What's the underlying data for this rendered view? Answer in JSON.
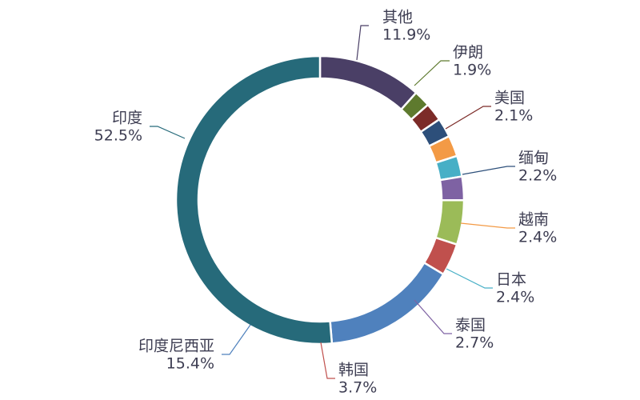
{
  "chart_data": {
    "type": "pie",
    "variant": "donut",
    "title": "",
    "legend": "none",
    "unit": "%",
    "start": "top",
    "direction": "clockwise",
    "slices": [
      {
        "label": "其他",
        "value": 11.9,
        "text": "11.9%",
        "color": "#4a3f66"
      },
      {
        "label": "伊朗",
        "value": 1.9,
        "text": "1.9%",
        "color": "#5e7a2e"
      },
      {
        "label": "美国",
        "value": 2.1,
        "text": "2.1%",
        "color": "#7c2b28"
      },
      {
        "label": "缅甸",
        "value": 2.2,
        "text": "2.2%",
        "color": "#2d4f7a"
      },
      {
        "label": "越南",
        "value": 2.4,
        "text": "2.4%",
        "color": "#f39a45"
      },
      {
        "label": "日本",
        "value": 2.4,
        "text": "2.4%",
        "color": "#47afc6"
      },
      {
        "label": "泰国",
        "value": 2.7,
        "text": "2.7%",
        "color": "#7e62a3"
      },
      {
        "label": "",
        "value": 5.1,
        "text": "",
        "color": "#9bbb58"
      },
      {
        "label": "韩国",
        "value": 3.7,
        "text": "3.7%",
        "color": "#c0504d"
      },
      {
        "label": "印度尼西亚",
        "value": 15.4,
        "text": "15.4%",
        "color": "#4f81bd"
      },
      {
        "label": "印度",
        "value": 52.5,
        "text": "52.5%",
        "color": "#266a7a"
      }
    ]
  }
}
